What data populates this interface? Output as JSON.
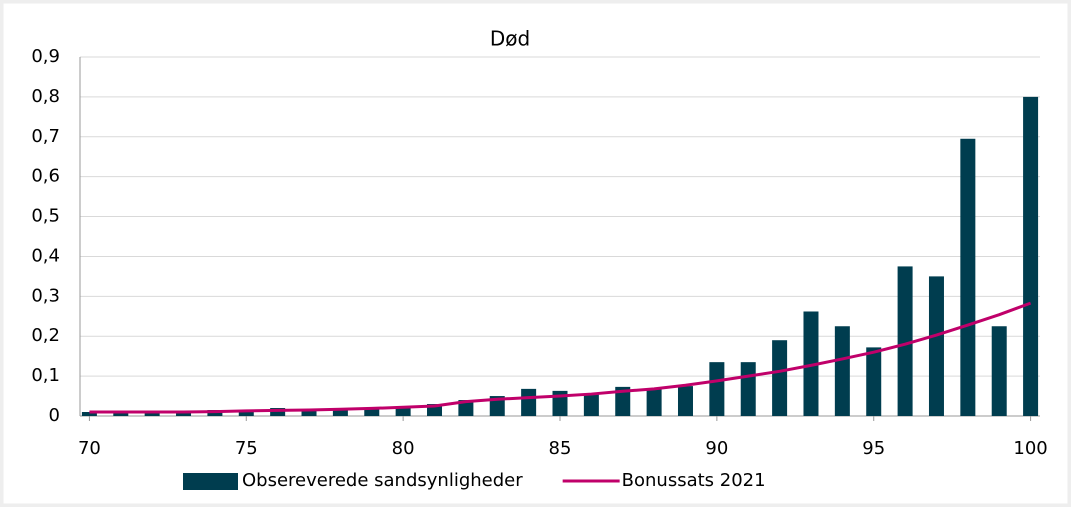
{
  "chart_data": {
    "type": "bar",
    "title": "Død",
    "x": [
      70,
      71,
      72,
      73,
      74,
      75,
      76,
      77,
      78,
      79,
      80,
      81,
      82,
      83,
      84,
      85,
      86,
      87,
      88,
      89,
      90,
      91,
      92,
      93,
      94,
      95,
      96,
      97,
      98,
      99,
      100
    ],
    "series": [
      {
        "name": "Obsereverede sandsynligheder",
        "type": "bar",
        "color": "#003d4f",
        "values": [
          0.01,
          0.01,
          0.008,
          0.008,
          0.015,
          0.013,
          0.02,
          0.013,
          0.015,
          0.018,
          0.022,
          0.03,
          0.04,
          0.05,
          0.068,
          0.063,
          0.055,
          0.073,
          0.068,
          0.075,
          0.135,
          0.135,
          0.19,
          0.262,
          0.225,
          0.172,
          0.375,
          0.35,
          0.695,
          0.225,
          0.8
        ]
      },
      {
        "name": "Bonussats 2021",
        "type": "line",
        "color": "#c0006a",
        "values": [
          0.01,
          0.01,
          0.01,
          0.01,
          0.011,
          0.013,
          0.014,
          0.015,
          0.017,
          0.019,
          0.022,
          0.025,
          0.036,
          0.042,
          0.046,
          0.05,
          0.055,
          0.062,
          0.068,
          0.077,
          0.088,
          0.1,
          0.112,
          0.127,
          0.143,
          0.16,
          0.18,
          0.203,
          0.228,
          0.254,
          0.283
        ]
      }
    ],
    "xlim": [
      69.7,
      100.3
    ],
    "xticks": [
      70,
      75,
      80,
      85,
      90,
      95,
      100
    ],
    "ylim": [
      0,
      0.9
    ],
    "yticks": [
      0,
      {
        "value": 0.1,
        "label": "0,1"
      },
      {
        "value": 0.2,
        "label": "0,2"
      },
      {
        "value": 0.3,
        "label": "0,3"
      },
      {
        "value": 0.4,
        "label": "0,4"
      },
      {
        "value": 0.5,
        "label": "0,5"
      },
      {
        "value": 0.6,
        "label": "0,6"
      },
      {
        "value": 0.7,
        "label": "0,7"
      },
      {
        "value": 0.8,
        "label": "0,8"
      },
      {
        "value": 0.9,
        "label": "0,9"
      }
    ],
    "grid": true,
    "legend": "bottom"
  }
}
